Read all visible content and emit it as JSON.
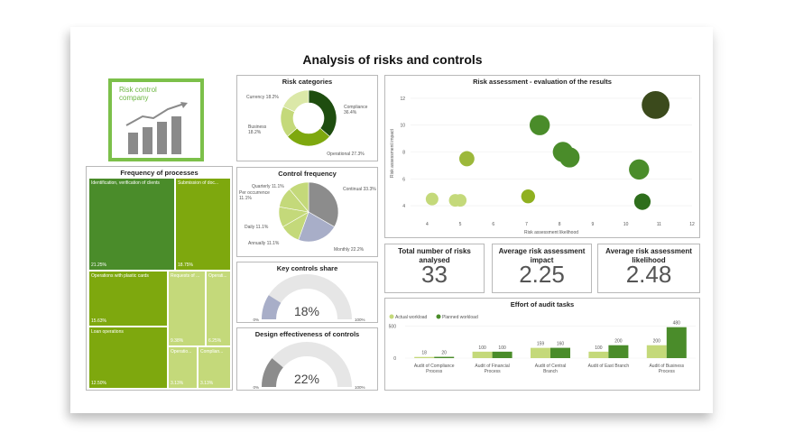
{
  "page": {
    "title": "Analysis of risks and controls"
  },
  "logo": {
    "line1": "Risk control",
    "line2": "company"
  },
  "colors": {
    "dark_green": "#1e4d0f",
    "green": "#4a8c2a",
    "mid_green": "#7ea80e",
    "light_green": "#c4d97a",
    "pale_green": "#dbe8a8",
    "gray": "#8c8c8c",
    "lavender": "#a8aec8",
    "light_gray": "#e6e6e6"
  },
  "chart_data": [
    {
      "type": "pie",
      "id": "risk_categories",
      "title": "Risk categories",
      "labels": [
        "Compliance",
        "Operational",
        "Business",
        "Currency"
      ],
      "values": [
        36.4,
        27.3,
        18.2,
        18.2
      ],
      "label_text": [
        "Compliance\n36.4%",
        "Operational 27.3%",
        "Business\n18.2%",
        "Currency 18.2%"
      ]
    },
    {
      "type": "pie",
      "id": "control_frequency",
      "title": "Control frequency",
      "labels": [
        "Continual",
        "Monthly",
        "Annually",
        "Daily",
        "Per occurrence",
        "Quarterly"
      ],
      "values": [
        33.3,
        22.2,
        11.1,
        11.1,
        11.1,
        11.1
      ],
      "label_text": [
        "Continual 33.3%",
        "Monthly 22.2%",
        "Annually 11.1%",
        "Daily 11.1%",
        "Per occurrence\n11.1%",
        "Quarterly 11.1%"
      ]
    },
    {
      "type": "gauge",
      "id": "key_controls_share",
      "title": "Key controls share",
      "value": 18,
      "value_label": "18%",
      "min_label": "0%",
      "max_label": "100%"
    },
    {
      "type": "gauge",
      "id": "design_effectiveness",
      "title": "Design effectiveness of controls",
      "value": 22,
      "value_label": "22%",
      "min_label": "0%",
      "max_label": "100%"
    },
    {
      "type": "heatmap",
      "id": "frequency_of_processes",
      "title": "Frequency of processes",
      "items": [
        {
          "label": "Identification, verification of clients",
          "value": "21.25%"
        },
        {
          "label": "Submission of doc...",
          "value": "18.75%"
        },
        {
          "label": "Operations with plastic cards",
          "value": "15.63%"
        },
        {
          "label": "Requests of ...",
          "value": "9.38%"
        },
        {
          "label": "Operati...",
          "value": "6.25%"
        },
        {
          "label": "Loan operations",
          "value": "12.50%"
        },
        {
          "label": "Operatio...",
          "value": "3.13%"
        },
        {
          "label": "Complian...",
          "value": "3.13%"
        }
      ]
    },
    {
      "type": "scatter",
      "id": "risk_assessment",
      "title": "Risk assessment - evaluation of the results",
      "xlabel": "Risk assessment likelihood",
      "ylabel": "Risk assessment impact",
      "xlim": [
        3.5,
        12
      ],
      "ylim": [
        3.2,
        12.6
      ],
      "xticks": [
        4,
        5,
        6,
        7,
        8,
        9,
        10,
        11,
        12
      ],
      "yticks": [
        4,
        6,
        8,
        10,
        12
      ],
      "points": [
        {
          "x": 4.15,
          "y": 4.5,
          "size": 1.0,
          "color": "#c4d97a"
        },
        {
          "x": 4.85,
          "y": 4.4,
          "size": 1.0,
          "color": "#c4d97a"
        },
        {
          "x": 5.0,
          "y": 4.4,
          "size": 1.0,
          "color": "#c4d97a"
        },
        {
          "x": 5.2,
          "y": 7.5,
          "size": 1.2,
          "color": "#9cb83a"
        },
        {
          "x": 7.05,
          "y": 4.7,
          "size": 1.1,
          "color": "#8fb020"
        },
        {
          "x": 7.4,
          "y": 10.0,
          "size": 1.6,
          "color": "#4a8c2a"
        },
        {
          "x": 8.1,
          "y": 8.0,
          "size": 1.6,
          "color": "#4a8c2a"
        },
        {
          "x": 8.3,
          "y": 7.6,
          "size": 1.6,
          "color": "#4a8c2a"
        },
        {
          "x": 10.4,
          "y": 6.7,
          "size": 1.6,
          "color": "#4a8c2a"
        },
        {
          "x": 10.5,
          "y": 4.3,
          "size": 1.3,
          "color": "#2e6e1c"
        },
        {
          "x": 10.9,
          "y": 11.5,
          "size": 2.2,
          "color": "#3b4a1c"
        }
      ]
    },
    {
      "type": "bar",
      "id": "effort_of_audit_tasks",
      "title": "Effort of audit tasks",
      "categories": [
        "Audit of Compliance\nProcess",
        "Audit of Financial\nProcess",
        "Audit of Central\nBranch",
        "Audit of East Branch",
        "Audit of Business\nProcess"
      ],
      "series": [
        {
          "name": "Actual workload",
          "values": [
            18,
            100,
            159,
            100,
            200
          ],
          "color": "#c4d97a"
        },
        {
          "name": "Planned workload",
          "values": [
            20,
            100,
            160,
            200,
            480
          ],
          "color": "#4a8c2a"
        }
      ],
      "yticks": [
        0,
        500
      ],
      "ylim": [
        0,
        560
      ]
    }
  ],
  "kpis": [
    {
      "title": "Total number of risks analysed",
      "value": "33"
    },
    {
      "title": "Average risk assessment impact",
      "value": "2.25"
    },
    {
      "title": "Average risk assessment likelihood",
      "value": "2.48"
    }
  ]
}
